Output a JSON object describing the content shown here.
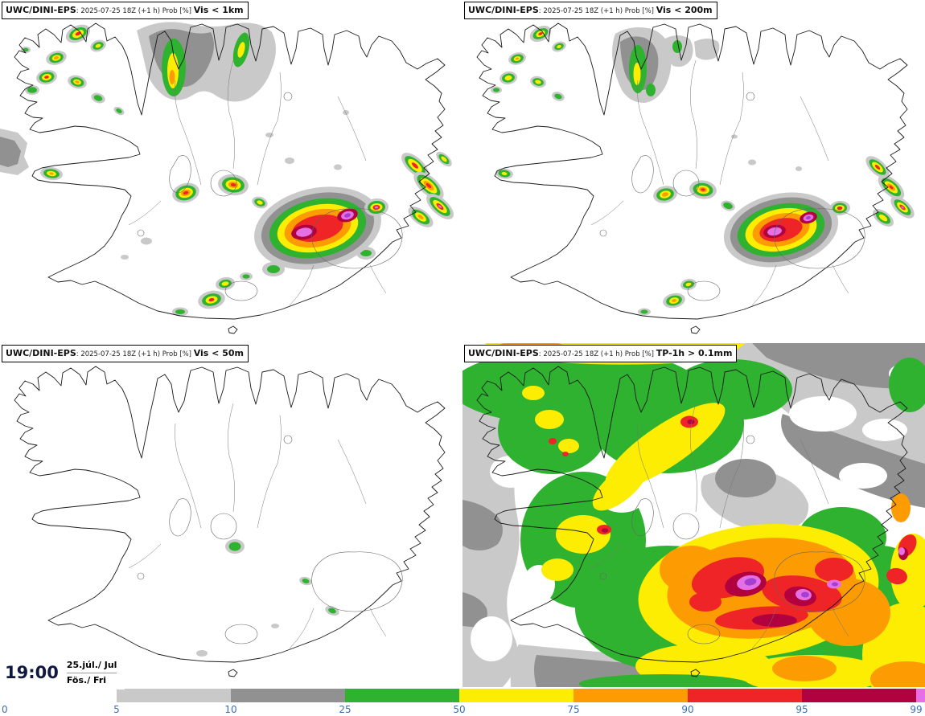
{
  "panels": [
    {
      "model": "UWC/DINI-EPS",
      "meta": ": 2025-07-25 18Z (+1 h) Prob [%] ",
      "threshold": "Vis < 1km"
    },
    {
      "model": "UWC/DINI-EPS",
      "meta": ": 2025-07-25 18Z (+1 h) Prob [%] ",
      "threshold": "Vis < 200m"
    },
    {
      "model": "UWC/DINI-EPS",
      "meta": ": 2025-07-25 18Z (+1 h) Prob [%] ",
      "threshold": "Vis < 50m"
    },
    {
      "model": "UWC/DINI-EPS",
      "meta": ": 2025-07-25 18Z (+1 h) Prob [%] ",
      "threshold": "TP-1h > 0.1mm"
    }
  ],
  "timestamp": {
    "time": "19:00",
    "date": "25.júl./ Jul",
    "day": "Fös./ Fri"
  },
  "colorbar": {
    "tick_labels": [
      "0",
      "5",
      "10",
      "25",
      "50",
      "75",
      "90",
      "95",
      "99"
    ],
    "segments": [
      {
        "from": "0",
        "to": "5",
        "color": "#ffffff"
      },
      {
        "from": "5",
        "to": "10",
        "color": "#c9c9c9"
      },
      {
        "from": "10",
        "to": "25",
        "color": "#919191"
      },
      {
        "from": "25",
        "to": "50",
        "color": "#2fb22f"
      },
      {
        "from": "50",
        "to": "75",
        "color": "#fded02"
      },
      {
        "from": "75",
        "to": "90",
        "color": "#fd9c02"
      },
      {
        "from": "90",
        "to": "95",
        "color": "#ee2426"
      },
      {
        "from": "95",
        "to": "99",
        "color": "#b2013f"
      },
      {
        "from": "99",
        "to": "",
        "color": "#e570e5"
      }
    ],
    "label_color": "#3a6fb0",
    "extra_level_color_purple": "#a53fd0"
  }
}
